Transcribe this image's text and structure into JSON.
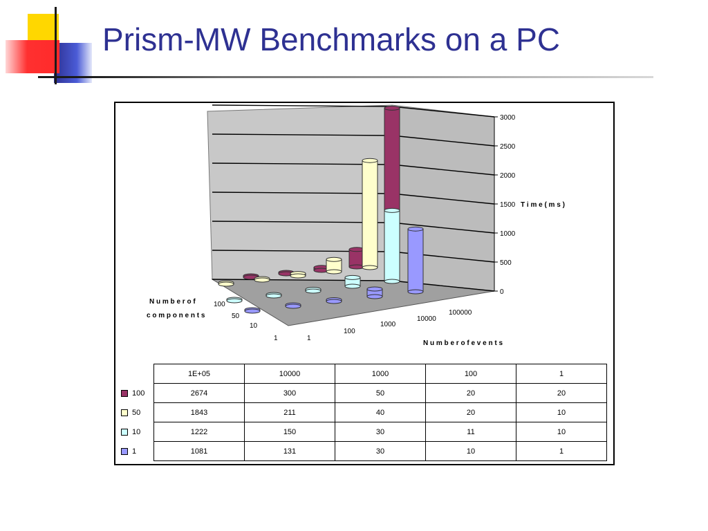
{
  "slide": {
    "title": "Prism-MW Benchmarks on a PC"
  },
  "colors": {
    "title": "#2e3192",
    "deco_yellow": "#ffd700",
    "deco_red": "#ff3333",
    "deco_blue": "#3333cc",
    "chart_wall": "#c8c8c8",
    "chart_floor": "#a0a0a0"
  },
  "chart_data": {
    "type": "bar",
    "title": "",
    "xlabel": "Number of events",
    "ylabel": "Number of components",
    "zlabel": "T i m e  ( m s )",
    "z_ticks": [
      "0",
      "500",
      "1000",
      "1500",
      "2000",
      "2500",
      "3000"
    ],
    "zlim": [
      0,
      3000
    ],
    "categories": [
      "100000",
      "10000",
      "1000",
      "100",
      "1"
    ],
    "table_header": [
      "1E+05",
      "10000",
      "1000",
      "100",
      "1"
    ],
    "series": [
      {
        "name": "100",
        "color": "#993366",
        "values": [
          2674,
          300,
          50,
          20,
          20
        ]
      },
      {
        "name": "50",
        "color": "#ffffcc",
        "values": [
          1843,
          211,
          40,
          20,
          10
        ]
      },
      {
        "name": "10",
        "color": "#ccffff",
        "values": [
          1222,
          150,
          30,
          11,
          10
        ]
      },
      {
        "name": "1",
        "color": "#9999ff",
        "values": [
          1081,
          131,
          30,
          10,
          1
        ]
      }
    ],
    "axis_labels": {
      "x_label_line": "N u m b e r   o f   e v e n t s",
      "y_label_line1": "N u m b e r   o f",
      "y_label_line2": "c o m p o n e n t s"
    },
    "legend": "bottom-table",
    "grid": true
  }
}
